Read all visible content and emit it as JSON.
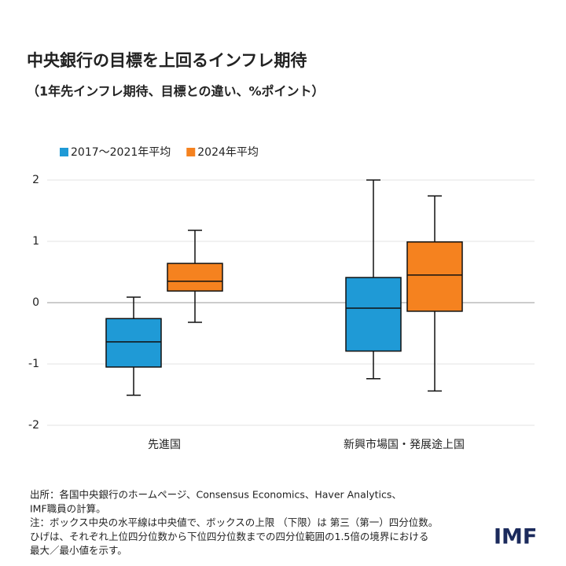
{
  "chart_data": {
    "type": "box",
    "title": "中央銀行の目標を上回るインフレ期待",
    "subtitle": "（1年先インフレ期待、目標との違い、%ポイント）",
    "categories": [
      "先進国",
      "新興市場国・発展途上国"
    ],
    "series": [
      {
        "name": "2017〜2021年平均",
        "color": "#1f9ad6",
        "min": [
          -1.51,
          -1.24
        ],
        "q1": [
          -1.05,
          -0.79
        ],
        "median": [
          -0.64,
          -0.09
        ],
        "q3": [
          -0.26,
          0.41
        ],
        "max": [
          0.09,
          2.0
        ]
      },
      {
        "name": "2024年平均",
        "color": "#f5821f",
        "min": [
          -0.32,
          -1.44
        ],
        "q1": [
          0.19,
          -0.14
        ],
        "median": [
          0.35,
          0.45
        ],
        "q3": [
          0.64,
          0.99
        ],
        "max": [
          1.18,
          1.74
        ]
      }
    ],
    "ylim": [
      -2,
      2
    ],
    "yticks": [
      -2,
      -1,
      0,
      1,
      2
    ],
    "grid": true,
    "notes": [
      "出所：各国中央銀行のホームページ、Consensus Economics、Haver Analytics、",
      "IMF職員の計算。",
      "注：ボックス中央の水平線は中央値で、ボックスの上限 （下限）は 第三（第一）四分位数。",
      "ひげは、それぞれ上位四分位数から下位四分位数までの四分位範囲の1.5倍の境界における",
      "最大／最小値を示す。"
    ],
    "logo": "IMF"
  }
}
